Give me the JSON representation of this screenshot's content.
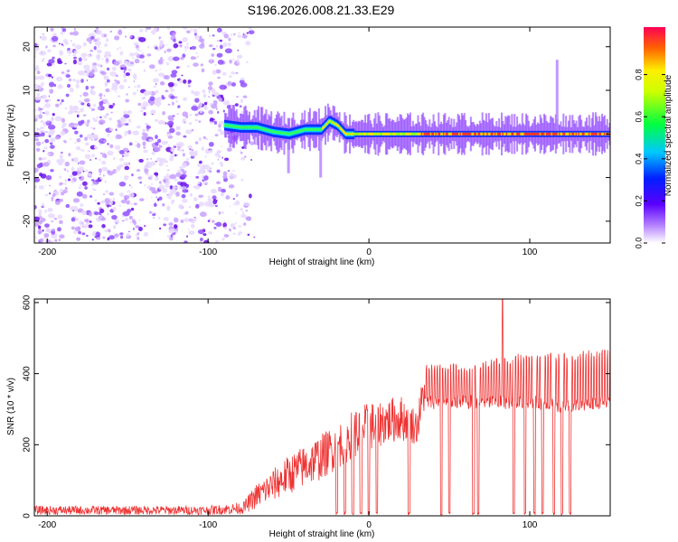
{
  "title": "S196.2026.008.21.33.E29",
  "chart_data": [
    {
      "type": "heatmap",
      "title": "S196.2026.008.21.33.E29",
      "xlabel": "Height of straight line (km)",
      "ylabel": "Frequency (Hz)",
      "xlim": [
        -208,
        150
      ],
      "ylim": [
        -25,
        24.5
      ],
      "xticks": [
        -200,
        -100,
        0,
        100
      ],
      "yticks": [
        -20,
        -10,
        0,
        10,
        20
      ],
      "noise_region_x": [
        -208,
        -78
      ],
      "signal_band": {
        "x_start": -90,
        "x_end": 150,
        "center_freq_points": [
          [
            -90,
            2
          ],
          [
            -80,
            1.5
          ],
          [
            -70,
            1.5
          ],
          [
            -60,
            0.5
          ],
          [
            -50,
            0
          ],
          [
            -40,
            1
          ],
          [
            -30,
            1
          ],
          [
            -25,
            3
          ],
          [
            -20,
            2
          ],
          [
            -15,
            0
          ],
          [
            -10,
            0
          ],
          [
            0,
            0
          ],
          [
            20,
            0
          ],
          [
            50,
            0
          ],
          [
            100,
            0
          ],
          [
            150,
            0
          ]
        ]
      },
      "spikes": [
        {
          "x": 117,
          "freq_range": [
            0,
            17
          ]
        },
        {
          "x": -30,
          "freq_range": [
            -10,
            0
          ]
        },
        {
          "x": -50,
          "freq_range": [
            -9,
            0
          ]
        }
      ],
      "colorbar": {
        "label": "Normalized spectral amplitude",
        "range": [
          0,
          1
        ],
        "ticks": [
          "0.0",
          "0.2",
          "0.4",
          "0.6",
          "0.8"
        ]
      }
    },
    {
      "type": "line",
      "xlabel": "Height of straight line (km)",
      "ylabel": "SNR (10 * v/v)",
      "xlim": [
        -208,
        150
      ],
      "ylim": [
        0,
        610
      ],
      "xticks": [
        -200,
        -100,
        0,
        100
      ],
      "yticks": [
        0,
        200,
        400,
        600
      ],
      "color": "#ee3333",
      "envelope_km": [
        -208,
        -100,
        -85,
        -78,
        -70,
        -60,
        -50,
        -40,
        -30,
        -20,
        -10,
        0,
        10,
        20,
        30,
        35,
        40,
        60,
        80,
        100,
        120,
        150
      ],
      "envelope_low": [
        3,
        3,
        4,
        5,
        20,
        40,
        60,
        80,
        100,
        130,
        160,
        180,
        200,
        210,
        200,
        300,
        300,
        300,
        300,
        300,
        290,
        300
      ],
      "envelope_high": [
        28,
        28,
        35,
        40,
        90,
        130,
        170,
        200,
        230,
        260,
        300,
        320,
        330,
        340,
        300,
        440,
        430,
        430,
        450,
        460,
        460,
        470
      ],
      "dropouts_km": [
        -20,
        -15,
        -10,
        -5,
        0,
        5,
        25,
        45,
        50,
        65,
        68,
        90,
        97,
        103,
        108,
        115,
        120,
        125
      ],
      "peak": {
        "x": 83,
        "y": 610
      }
    }
  ]
}
